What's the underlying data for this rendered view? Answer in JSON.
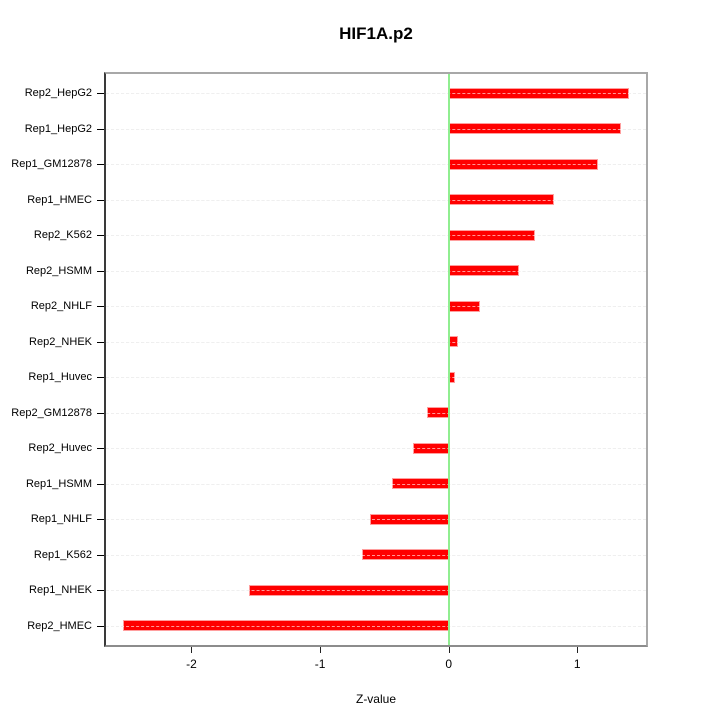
{
  "chart_data": {
    "type": "bar",
    "orientation": "horizontal",
    "title": "HIF1A.p2",
    "xlabel": "Z-value",
    "categories": [
      "Rep2_HepG2",
      "Rep1_HepG2",
      "Rep1_GM12878",
      "Rep1_HMEC",
      "Rep2_K562",
      "Rep2_HSMM",
      "Rep2_NHLF",
      "Rep2_NHEK",
      "Rep1_Huvec",
      "Rep2_GM12878",
      "Rep2_Huvec",
      "Rep1_HSMM",
      "Rep1_NHLF",
      "Rep1_K562",
      "Rep1_NHEK",
      "Rep2_HMEC"
    ],
    "values": [
      1.4,
      1.34,
      1.16,
      0.82,
      0.67,
      0.55,
      0.24,
      0.07,
      0.05,
      -0.17,
      -0.28,
      -0.44,
      -0.61,
      -0.67,
      -1.55,
      -2.53
    ],
    "xticks": [
      -2,
      -1,
      0,
      1
    ],
    "xlim": [
      -2.68,
      1.55
    ],
    "grid": true,
    "legend": "none",
    "colors": {
      "bar_fill": "#ff0000",
      "bar_border": "#ff9e9e",
      "zero_line": "#90ee90",
      "grid_line": "#d6d6d6",
      "frame": "#a8a8a8",
      "text": "#000000",
      "background": "#ffffff"
    }
  }
}
